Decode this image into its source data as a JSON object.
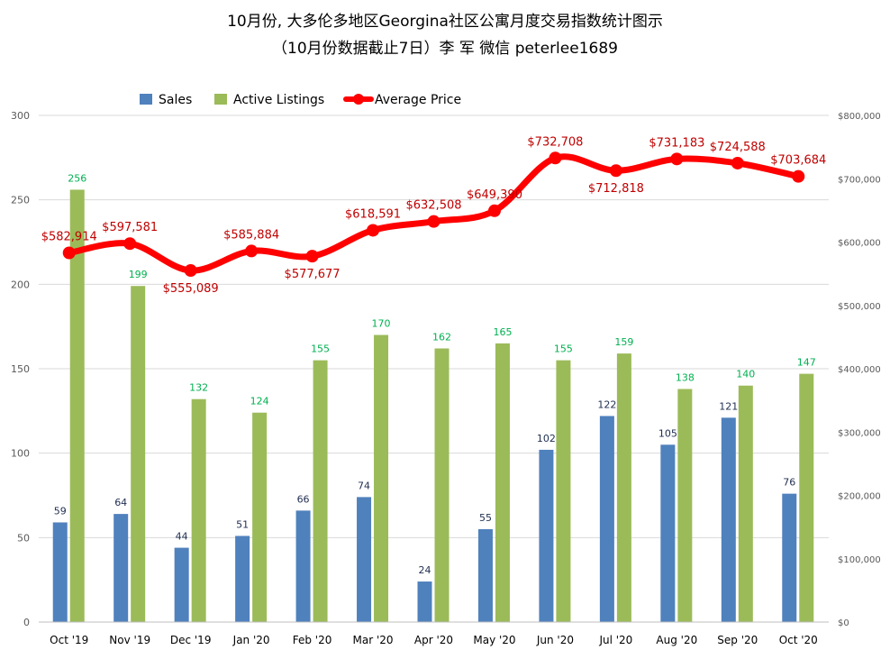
{
  "chart_data": {
    "type": "bar",
    "title_line1": "10月份, 大多伦多地区Georgina社区公寓月度交易指数统计图示",
    "title_line2": "（10月份数据截止7日）李 军  微信  peterlee1689",
    "categories": [
      "Oct '19",
      "Nov '19",
      "Dec '19",
      "Jan '20",
      "Feb '20",
      "Mar '20",
      "Apr '20",
      "May '20",
      "Jun '20",
      "Jul '20",
      "Aug '20",
      "Sep '20",
      "Oct '20"
    ],
    "series": [
      {
        "name": "Sales",
        "type": "bar",
        "axis": "left",
        "color": "#4f81bd",
        "label_color": "#1f2d50",
        "values": [
          59,
          64,
          44,
          51,
          66,
          74,
          24,
          55,
          102,
          122,
          105,
          121,
          76
        ],
        "labels": [
          "59",
          "64",
          "44",
          "51",
          "66",
          "74",
          "24",
          "55",
          "102",
          "122",
          "105",
          "121",
          "76"
        ]
      },
      {
        "name": "Active Listings",
        "type": "bar",
        "axis": "left",
        "color": "#9bbb59",
        "label_color": "#00b050",
        "values": [
          256,
          199,
          132,
          124,
          155,
          170,
          162,
          165,
          155,
          159,
          138,
          140,
          147
        ],
        "labels": [
          "256",
          "199",
          "132",
          "124",
          "155",
          "170",
          "162",
          "165",
          "155",
          "159",
          "138",
          "140",
          "147"
        ]
      },
      {
        "name": "Average Price",
        "type": "line",
        "axis": "right",
        "color": "#ff0000",
        "label_color": "#c00000",
        "values": [
          582914,
          597581,
          555089,
          585884,
          577677,
          618591,
          632508,
          649390,
          732708,
          712818,
          731183,
          724588,
          703684
        ],
        "labels": [
          "$582,914",
          "$597,581",
          "$555,089",
          "$585,884",
          "$577,677",
          "$618,591",
          "$632,508",
          "$649,390",
          "$732,708",
          "$712,818",
          "$731,183",
          "$724,588",
          "$703,684"
        ]
      }
    ],
    "y_left": {
      "min": 0,
      "max": 300,
      "ticks": [
        "0",
        "50",
        "100",
        "150",
        "200",
        "250",
        "300"
      ]
    },
    "y_right": {
      "min": 0,
      "max": 800000,
      "ticks": [
        "$0",
        "$100,000",
        "$200,000",
        "$300,000",
        "$400,000",
        "$500,000",
        "$600,000",
        "$700,000",
        "$800,000"
      ]
    },
    "grid": true,
    "legend_position": "top"
  }
}
